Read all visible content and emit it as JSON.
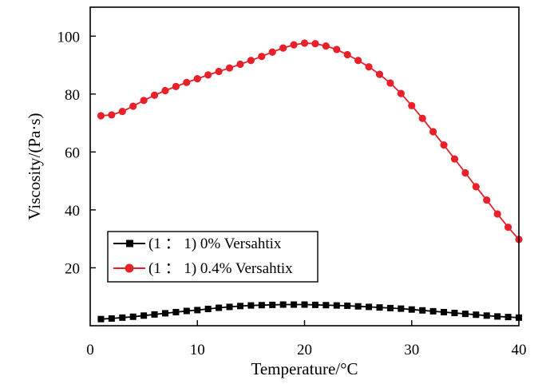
{
  "chart_data": {
    "type": "line",
    "xlabel": "Temperature/°C",
    "ylabel": "Viscosity/(Pa·s)",
    "xlim": [
      0,
      40
    ],
    "ylim": [
      0,
      110
    ],
    "x_ticks": [
      0,
      10,
      20,
      30,
      40
    ],
    "y_ticks": [
      20,
      40,
      60,
      80,
      100
    ],
    "x_tick_labels": [
      "0",
      "10",
      "20",
      "30",
      "40"
    ],
    "y_tick_labels": [
      "20",
      "40",
      "60",
      "80",
      "100"
    ],
    "grid": false,
    "legend_position": "lower-left",
    "series": [
      {
        "name": "(1 ： 1) 0% Versahtix",
        "color": "#000000",
        "marker": "square",
        "points": [
          [
            1.0,
            2.3
          ],
          [
            2.0,
            2.5
          ],
          [
            3.0,
            2.8
          ],
          [
            4.0,
            3.1
          ],
          [
            5.0,
            3.5
          ],
          [
            6.0,
            3.9
          ],
          [
            7.0,
            4.3
          ],
          [
            8.0,
            4.7
          ],
          [
            9.0,
            5.1
          ],
          [
            10.0,
            5.4
          ],
          [
            11.0,
            5.8
          ],
          [
            12.0,
            6.2
          ],
          [
            13.0,
            6.5
          ],
          [
            14.0,
            6.8
          ],
          [
            15.0,
            7.0
          ],
          [
            16.0,
            7.1
          ],
          [
            17.0,
            7.2
          ],
          [
            18.0,
            7.3
          ],
          [
            19.0,
            7.3
          ],
          [
            20.0,
            7.3
          ],
          [
            21.0,
            7.2
          ],
          [
            22.0,
            7.1
          ],
          [
            23.0,
            7.0
          ],
          [
            24.0,
            6.9
          ],
          [
            25.0,
            6.7
          ],
          [
            26.0,
            6.5
          ],
          [
            27.0,
            6.3
          ],
          [
            28.0,
            6.1
          ],
          [
            29.0,
            5.9
          ],
          [
            30.0,
            5.6
          ],
          [
            31.0,
            5.3
          ],
          [
            32.0,
            5.0
          ],
          [
            33.0,
            4.7
          ],
          [
            34.0,
            4.4
          ],
          [
            35.0,
            4.1
          ],
          [
            36.0,
            3.8
          ],
          [
            37.0,
            3.5
          ],
          [
            38.0,
            3.2
          ],
          [
            39.0,
            3.0
          ],
          [
            40.0,
            2.8
          ]
        ]
      },
      {
        "name": "(1 ： 1) 0.4% Versahtix",
        "color": "#e8202a",
        "marker": "circle",
        "points": [
          [
            1.0,
            72.5
          ],
          [
            2.0,
            72.8
          ],
          [
            3.0,
            74.0
          ],
          [
            4.0,
            75.8
          ],
          [
            5.0,
            77.8
          ],
          [
            6.0,
            79.6
          ],
          [
            7.0,
            81.2
          ],
          [
            8.0,
            82.6
          ],
          [
            9.0,
            84.0
          ],
          [
            10.0,
            85.3
          ],
          [
            11.0,
            86.6
          ],
          [
            12.0,
            87.8
          ],
          [
            13.0,
            89.0
          ],
          [
            14.0,
            90.3
          ],
          [
            15.0,
            91.6
          ],
          [
            16.0,
            93.0
          ],
          [
            17.0,
            94.5
          ],
          [
            18.0,
            95.9
          ],
          [
            19.0,
            97.0
          ],
          [
            20.0,
            97.6
          ],
          [
            21.0,
            97.4
          ],
          [
            22.0,
            96.6
          ],
          [
            23.0,
            95.4
          ],
          [
            24.0,
            93.6
          ],
          [
            25.0,
            91.6
          ],
          [
            26.0,
            89.4
          ],
          [
            27.0,
            86.8
          ],
          [
            28.0,
            83.8
          ],
          [
            29.0,
            80.2
          ],
          [
            30.0,
            76.0
          ],
          [
            31.0,
            71.6
          ],
          [
            32.0,
            67.0
          ],
          [
            33.0,
            62.4
          ],
          [
            34.0,
            57.6
          ],
          [
            35.0,
            52.8
          ],
          [
            36.0,
            48.0
          ],
          [
            37.0,
            43.4
          ],
          [
            38.0,
            38.6
          ],
          [
            39.0,
            34.0
          ],
          [
            40.0,
            29.8
          ]
        ]
      }
    ]
  }
}
